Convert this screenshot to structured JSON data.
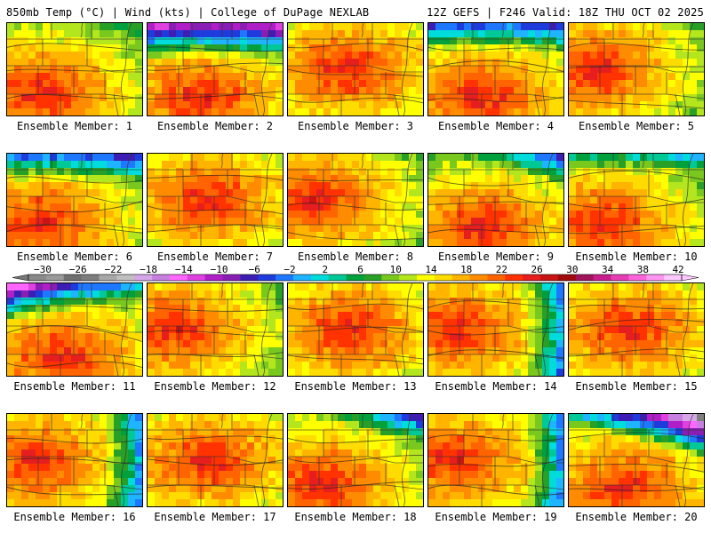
{
  "header": {
    "left": "850mb Temp (°C) | Wind (kts) | College of DuPage NEXLAB",
    "right": "12Z GEFS | F246 Valid: 18Z THU OCT 02 2025"
  },
  "member_label_prefix": "Ensemble Member: ",
  "members": [
    {
      "number": 1,
      "label": "Ensemble Member: 1",
      "warm_core": "southwest",
      "cold_intrusion": "none"
    },
    {
      "number": 2,
      "label": "Ensemble Member: 2",
      "warm_core": "south",
      "cold_intrusion": "strong-north"
    },
    {
      "number": 3,
      "label": "Ensemble Member: 3",
      "warm_core": "central",
      "cold_intrusion": "none"
    },
    {
      "number": 4,
      "label": "Ensemble Member: 4",
      "warm_core": "south",
      "cold_intrusion": "moderate-north"
    },
    {
      "number": 5,
      "label": "Ensemble Member: 5",
      "warm_core": "west",
      "cold_intrusion": "none"
    },
    {
      "number": 6,
      "label": "Ensemble Member: 6",
      "warm_core": "southwest",
      "cold_intrusion": "moderate-north"
    },
    {
      "number": 7,
      "label": "Ensemble Member: 7",
      "warm_core": "central",
      "cold_intrusion": "none"
    },
    {
      "number": 8,
      "label": "Ensemble Member: 8",
      "warm_core": "west",
      "cold_intrusion": "none"
    },
    {
      "number": 9,
      "label": "Ensemble Member: 9",
      "warm_core": "south",
      "cold_intrusion": "weak-northeast"
    },
    {
      "number": 10,
      "label": "Ensemble Member: 10",
      "warm_core": "southwest",
      "cold_intrusion": "weak-north"
    },
    {
      "number": 11,
      "label": "Ensemble Member: 11",
      "warm_core": "south",
      "cold_intrusion": "strong-northwest"
    },
    {
      "number": 12,
      "label": "Ensemble Member: 12",
      "warm_core": "west",
      "cold_intrusion": "none"
    },
    {
      "number": 13,
      "label": "Ensemble Member: 13",
      "warm_core": "central",
      "cold_intrusion": "none"
    },
    {
      "number": 14,
      "label": "Ensemble Member: 14",
      "warm_core": "west",
      "cold_intrusion": "weak-east"
    },
    {
      "number": 15,
      "label": "Ensemble Member: 15",
      "warm_core": "central",
      "cold_intrusion": "none"
    },
    {
      "number": 16,
      "label": "Ensemble Member: 16",
      "warm_core": "west",
      "cold_intrusion": "weak-east"
    },
    {
      "number": 17,
      "label": "Ensemble Member: 17",
      "warm_core": "central",
      "cold_intrusion": "none"
    },
    {
      "number": 18,
      "label": "Ensemble Member: 18",
      "warm_core": "southwest",
      "cold_intrusion": "weak-northeast"
    },
    {
      "number": 19,
      "label": "Ensemble Member: 19",
      "warm_core": "west",
      "cold_intrusion": "weak-east"
    },
    {
      "number": 20,
      "label": "Ensemble Member: 20",
      "warm_core": "south",
      "cold_intrusion": "strong-northeast"
    }
  ],
  "color_scale": {
    "units": "°C",
    "tick_labels": [
      "-30",
      "-26",
      "-22",
      "-18",
      "-14",
      "-10",
      "-6",
      "-2",
      "2",
      "6",
      "10",
      "14",
      "18",
      "22",
      "26",
      "30",
      "34",
      "38",
      "42"
    ],
    "bins": [
      {
        "value": -30,
        "color": "#8a8a8a"
      },
      {
        "value": -28,
        "color": "#9a9a9a"
      },
      {
        "value": -26,
        "color": "#6f6f6f"
      },
      {
        "value": -24,
        "color": "#7e7e7e"
      },
      {
        "value": -22,
        "color": "#a8a8a8"
      },
      {
        "value": -20,
        "color": "#c0c0c0"
      },
      {
        "value": -18,
        "color": "#d7a6e8"
      },
      {
        "value": -16,
        "color": "#c77fe0"
      },
      {
        "value": -14,
        "color": "#ff66ff"
      },
      {
        "value": -12,
        "color": "#e040e0"
      },
      {
        "value": -10,
        "color": "#b01ec8"
      },
      {
        "value": -8,
        "color": "#8a1eb4"
      },
      {
        "value": -6,
        "color": "#3c1eb4"
      },
      {
        "value": -4,
        "color": "#1e3cdc"
      },
      {
        "value": -2,
        "color": "#1e78ff"
      },
      {
        "value": 0,
        "color": "#1eb4ff"
      },
      {
        "value": 2,
        "color": "#00dcdc"
      },
      {
        "value": 4,
        "color": "#00c896"
      },
      {
        "value": 6,
        "color": "#00a03c"
      },
      {
        "value": 8,
        "color": "#28a028"
      },
      {
        "value": 10,
        "color": "#78c81e"
      },
      {
        "value": 12,
        "color": "#b4e61e"
      },
      {
        "value": 14,
        "color": "#ffff00"
      },
      {
        "value": 16,
        "color": "#ffdc00"
      },
      {
        "value": 18,
        "color": "#ffb400"
      },
      {
        "value": 20,
        "color": "#ff8c00"
      },
      {
        "value": 22,
        "color": "#ff6400"
      },
      {
        "value": 24,
        "color": "#ff3200"
      },
      {
        "value": 26,
        "color": "#e61e1e"
      },
      {
        "value": 28,
        "color": "#c81414"
      },
      {
        "value": 30,
        "color": "#a00a0a"
      },
      {
        "value": 32,
        "color": "#a0145a"
      },
      {
        "value": 34,
        "color": "#c81e8c"
      },
      {
        "value": 36,
        "color": "#e63cb4"
      },
      {
        "value": 38,
        "color": "#ff64dc"
      },
      {
        "value": 40,
        "color": "#ff96f0"
      },
      {
        "value": 42,
        "color": "#ffc8ff"
      }
    ]
  }
}
